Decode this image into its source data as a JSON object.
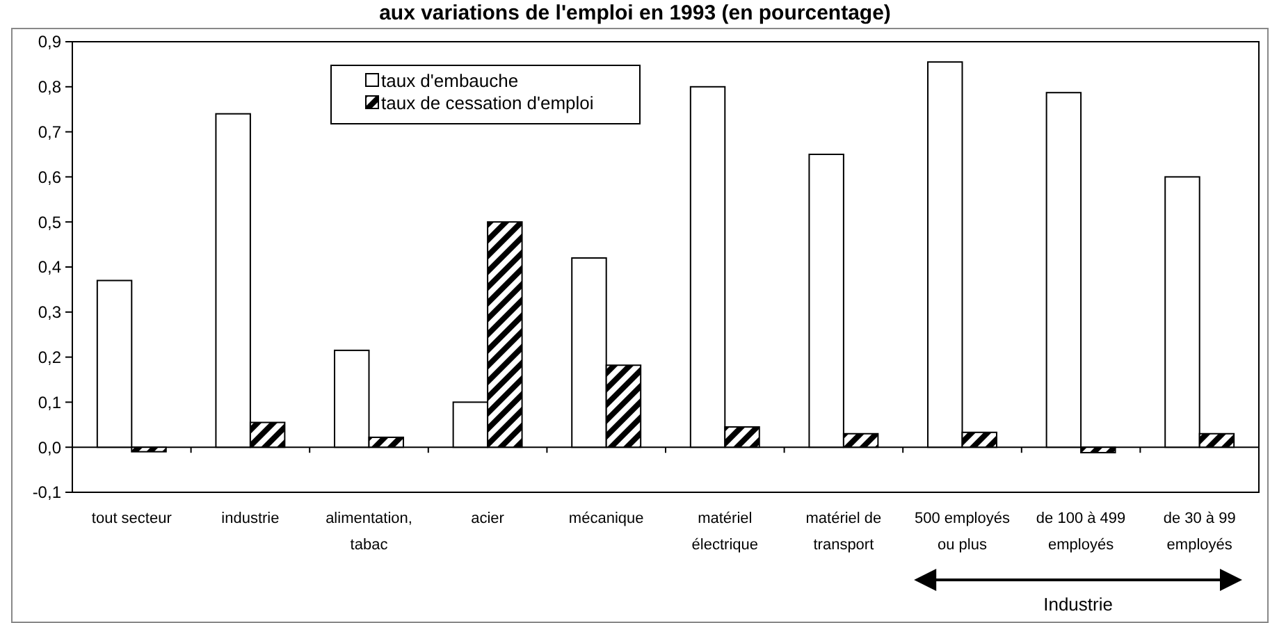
{
  "chart_data": {
    "type": "bar",
    "title": "aux variations de l'emploi en 1993 (en pourcentage)",
    "categories": [
      "tout secteur",
      "industrie",
      "alimentation, tabac",
      "acier",
      "mécanique",
      "matériel électrique",
      "matériel de transport",
      "500 employés ou plus",
      "de 100 à 499 employés",
      "de 30 à 99 employés"
    ],
    "series": [
      {
        "name": "taux d'embauche",
        "color": "#ffffff",
        "values": [
          0.37,
          0.74,
          0.215,
          0.1,
          0.42,
          0.8,
          0.65,
          0.855,
          0.787,
          0.6
        ]
      },
      {
        "name": "taux de cessation d'emploi",
        "color": "#000000",
        "values": [
          -0.01,
          0.055,
          0.022,
          0.5,
          0.182,
          0.045,
          0.03,
          0.033,
          -0.012,
          0.03
        ]
      }
    ],
    "ylim": [
      -0.1,
      0.9
    ],
    "yticks": [
      {
        "value": -0.1,
        "label": "-0,1"
      },
      {
        "value": 0,
        "label": "0,0"
      },
      {
        "value": 0.1,
        "label": "0,1"
      },
      {
        "value": 0.2,
        "label": "0,2"
      },
      {
        "value": 0.3,
        "label": "0,3"
      },
      {
        "value": 0.4,
        "label": "0,4"
      },
      {
        "value": 0.5,
        "label": "0,5"
      },
      {
        "value": 0.6,
        "label": "0,6"
      },
      {
        "value": 0.7,
        "label": "0,7"
      },
      {
        "value": 0.8,
        "label": "0,8"
      },
      {
        "value": 0.9,
        "label": "0,9"
      }
    ],
    "legend": "top",
    "annotations": [
      "Industrie"
    ]
  }
}
